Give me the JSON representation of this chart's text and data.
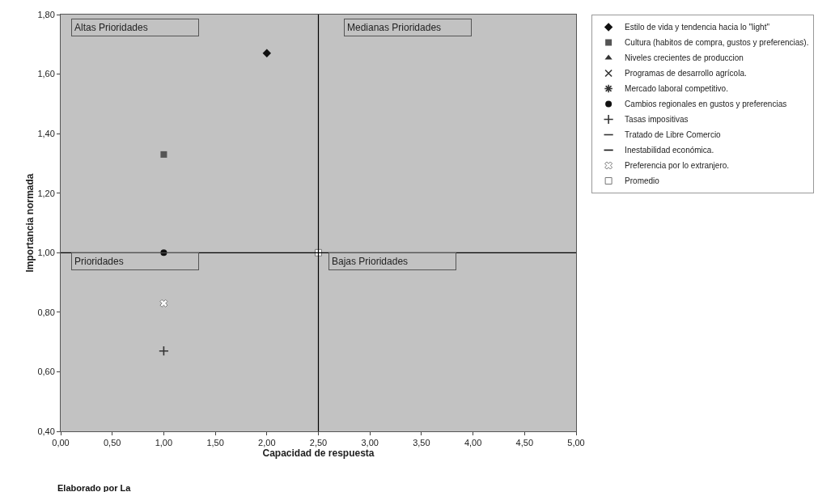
{
  "chart_data": {
    "type": "scatter",
    "xlabel": "Capacidad de respuesta",
    "ylabel": "Importancia normada",
    "xlim": [
      0,
      5
    ],
    "xticks": [
      {
        "value": 0,
        "label": "0,00"
      },
      {
        "value": 0.5,
        "label": "0,50"
      },
      {
        "value": 1,
        "label": "1,00"
      },
      {
        "value": 1.5,
        "label": "1,50"
      },
      {
        "value": 2,
        "label": "2,00"
      },
      {
        "value": 2.5,
        "label": "2,50"
      },
      {
        "value": 3,
        "label": "3,00"
      },
      {
        "value": 3.5,
        "label": "3,50"
      },
      {
        "value": 4,
        "label": "4,00"
      },
      {
        "value": 4.5,
        "label": "4,50"
      },
      {
        "value": 5,
        "label": "5,00"
      }
    ],
    "ylim": [
      0.4,
      1.8
    ],
    "yticks": [
      {
        "value": 0.4,
        "label": "0,40"
      },
      {
        "value": 0.6,
        "label": "0,60"
      },
      {
        "value": 0.8,
        "label": "0,80"
      },
      {
        "value": 1,
        "label": "1,00"
      },
      {
        "value": 1.2,
        "label": "1,20"
      },
      {
        "value": 1.4,
        "label": "1,40"
      },
      {
        "value": 1.6,
        "label": "1,60"
      },
      {
        "value": 1.8,
        "label": "1,80"
      }
    ],
    "grid": false,
    "legend": "right",
    "series": [
      {
        "name": "Estilo de vida y tendencia hacia lo \"light\"",
        "color": "#111111",
        "marker": "diamond",
        "x": [
          2
        ],
        "values": [
          1.67
        ]
      },
      {
        "name": "Cultura (habitos de compra, gustos y preferencias).",
        "color": "#555555",
        "marker": "square",
        "x": [
          1
        ],
        "values": [
          1.33
        ]
      },
      {
        "name": "Niveles crecientes de produccion",
        "color": "#333333",
        "marker": "triangle",
        "x": [
          null
        ],
        "values": [
          null
        ]
      },
      {
        "name": "Programas de desarrollo agrícola.",
        "color": "#333333",
        "marker": "cross",
        "x": [
          null
        ],
        "values": [
          null
        ]
      },
      {
        "name": "Mercado laboral competitivo.",
        "color": "#333333",
        "marker": "star",
        "x": [
          null
        ],
        "values": [
          null
        ]
      },
      {
        "name": "Cambios regionales en gustos y preferencias",
        "color": "#111111",
        "marker": "circle",
        "x": [
          1
        ],
        "values": [
          1
        ]
      },
      {
        "name": "Tasas impositivas",
        "color": "#333333",
        "marker": "plus",
        "x": [
          1
        ],
        "values": [
          0.67
        ]
      },
      {
        "name": "Tratado de Libre Comercio",
        "color": "#333333",
        "marker": "dash",
        "x": [
          null
        ],
        "values": [
          null
        ]
      },
      {
        "name": "Inestabilidad económica.",
        "color": "#111111",
        "marker": "dash",
        "x": [
          null
        ],
        "values": [
          null
        ]
      },
      {
        "name": "Preferencia por lo extranjero.",
        "color": "#ffffff",
        "marker": "cross",
        "x": [
          1
        ],
        "values": [
          0.83
        ]
      },
      {
        "name": "Promedio",
        "color": "#ffffff",
        "marker": "square",
        "x": [
          2.5
        ],
        "values": [
          1
        ]
      }
    ],
    "ref_lines": [
      {
        "axis": "x",
        "value": 2.5,
        "color": "#000000"
      },
      {
        "axis": "y",
        "value": 1,
        "color": "#000000"
      }
    ],
    "annotations": [
      "Altas Prioridades",
      "Medianas Prioridades",
      "Prioridades",
      "Bajas Prioridades",
      "Elaborado por La"
    ]
  }
}
